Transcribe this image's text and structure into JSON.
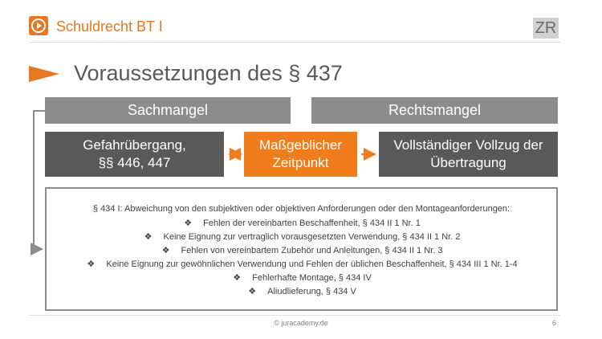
{
  "header": {
    "course_title": "Schuldrecht BT I",
    "badge": "ZR"
  },
  "slide": {
    "title": "Voraussetzungen des § 437"
  },
  "categories": {
    "left": "Sachmangel",
    "right": "Rechtsmangel"
  },
  "timing": {
    "left_line1": "Gefahrübergang,",
    "left_line2": "§§ 446, 447",
    "center_line1": "Maßgeblicher",
    "center_line2": "Zeitpunkt",
    "right_line1": "Vollständiger Vollzug der",
    "right_line2": "Übertragung"
  },
  "requirements": {
    "intro": "§ 434 I: Abweichung von den subjektiven oder objektiven Anforderungen oder den Montageanforderungen:",
    "bullet_glyph": "❖",
    "items": [
      "Fehlen der vereinbarten Beschaffenheit,  § 434 II 1 Nr. 1",
      "Keine Eignung zur vertraglich vorausgesetzten Verwendung,  § 434 II 1 Nr. 2",
      "Fehlen von vereinbartem Zubehör und Anleitungen, § 434 II 1 Nr. 3",
      "Keine Eignung zur gewöhnlichen Verwendung und Fehlen der üblichen Beschaffenheit, § 434 III 1 Nr. 1-4",
      "Fehlerhafte Montage, § 434 IV",
      "Aliudlieferung, § 434 V"
    ]
  },
  "footer": {
    "copyright": "© juracademy.de",
    "page": "6"
  },
  "colors": {
    "accent": "#e87722",
    "orange_box": "#f07c1c",
    "dark_box": "#595959",
    "grey_bar": "#8c8c8c"
  }
}
